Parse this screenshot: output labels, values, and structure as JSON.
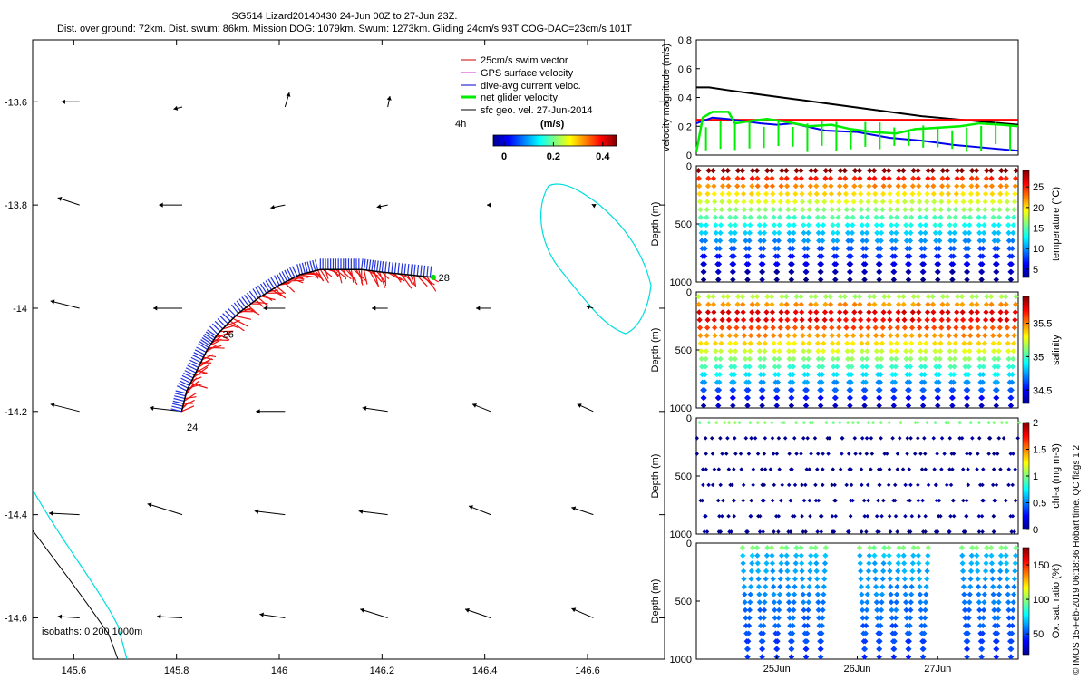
{
  "header": {
    "title_line1": "SG514 Lizard20140430 24-Jun 00Z to 27-Jun 23Z.",
    "title_line2": "Dist. over ground: 72km. Dist. swum: 86km. Mission DOG: 1079km. Swum: 1273km. Gliding 24cm/s 93T COG-DAC=23cm/s 101T"
  },
  "credit": "© IMOS 15-Feb-2019 06:18:36 Hobart time. QC flags 1  2",
  "chart_data": [
    {
      "type": "scatter",
      "id": "map",
      "xlim": [
        145.52,
        146.75
      ],
      "ylim": [
        -14.68,
        -13.48
      ],
      "x_ticks": [
        145.6,
        145.8,
        146,
        146.2,
        146.4,
        146.6
      ],
      "x_tick_labels": [
        "145.6",
        "145.8",
        "146",
        "146.2",
        "146.4",
        "146.6"
      ],
      "y_ticks": [
        -13.6,
        -13.8,
        -14,
        -14.2,
        -14.4,
        -14.6
      ],
      "y_tick_labels": [
        "-13.6",
        "-13.8",
        "-14",
        "-14.2",
        "-14.4",
        "-14.6"
      ],
      "legend": {
        "placement": "top-right",
        "items": [
          {
            "label": "25cm/s swim vector",
            "color": "#cc0000"
          },
          {
            "label": "GPS surface velocity",
            "color": "#cc33cc"
          },
          {
            "label": "dive-avg current veloc.",
            "color": "#0000cc"
          },
          {
            "label": "net glider velocity",
            "color": "#00ee00"
          },
          {
            "label": "sfc geo. vel. 27-Jun-2014",
            "color": "#000000"
          }
        ],
        "time_label": "4h"
      },
      "colorbar": {
        "label": "(m/s)",
        "ticks": [
          0,
          0.2,
          0.4
        ],
        "tick_labels": [
          "0",
          "0.2",
          "0.4"
        ]
      },
      "isobath_label": "isobaths: 0   200  1000m",
      "track": {
        "lon": [
          145.81,
          145.82,
          145.84,
          145.86,
          145.88,
          145.92,
          145.96,
          146.0,
          146.04,
          146.08,
          146.12,
          146.16,
          146.2,
          146.25,
          146.3
        ],
        "lat": [
          -14.2,
          -14.16,
          -14.12,
          -14.08,
          -14.05,
          -14.01,
          -13.98,
          -13.955,
          -13.935,
          -13.925,
          -13.925,
          -13.925,
          -13.93,
          -13.935,
          -13.94
        ]
      },
      "day_labels": [
        {
          "label": "24",
          "lon": 145.82,
          "lat": -14.23
        },
        {
          "label": "26",
          "lon": 145.89,
          "lat": -14.05
        },
        {
          "label": "28",
          "lon": 146.31,
          "lat": -13.94
        }
      ],
      "geo_vectors": [
        {
          "lon": 145.59,
          "lat": -13.6,
          "u": -0.25,
          "v": 0.0
        },
        {
          "lon": 145.79,
          "lat": -13.61,
          "u": -0.12,
          "v": -0.03
        },
        {
          "lon": 145.99,
          "lat": -13.61,
          "u": 0.06,
          "v": 0.2
        },
        {
          "lon": 146.19,
          "lat": -13.61,
          "u": 0.03,
          "v": 0.15
        },
        {
          "lon": 145.59,
          "lat": -13.8,
          "u": -0.3,
          "v": 0.1
        },
        {
          "lon": 145.79,
          "lat": -13.8,
          "u": -0.32,
          "v": 0.0
        },
        {
          "lon": 145.99,
          "lat": -13.8,
          "u": -0.2,
          "v": -0.04
        },
        {
          "lon": 146.19,
          "lat": -13.8,
          "u": -0.15,
          "v": -0.03
        },
        {
          "lon": 146.39,
          "lat": -13.8,
          "u": -0.05,
          "v": 0.0
        },
        {
          "lon": 146.59,
          "lat": -13.8,
          "u": -0.02,
          "v": 0.01
        },
        {
          "lon": 145.59,
          "lat": -14.0,
          "u": -0.4,
          "v": 0.1
        },
        {
          "lon": 145.79,
          "lat": -14.0,
          "u": -0.4,
          "v": 0.0
        },
        {
          "lon": 145.99,
          "lat": -14.0,
          "u": -0.3,
          "v": 0.0
        },
        {
          "lon": 146.19,
          "lat": -14.0,
          "u": -0.22,
          "v": 0.0
        },
        {
          "lon": 146.39,
          "lat": -14.0,
          "u": -0.2,
          "v": 0.0
        },
        {
          "lon": 146.59,
          "lat": -14.0,
          "u": -0.1,
          "v": 0.03
        },
        {
          "lon": 145.59,
          "lat": -14.2,
          "u": -0.4,
          "v": 0.1
        },
        {
          "lon": 145.79,
          "lat": -14.2,
          "u": -0.45,
          "v": 0.05
        },
        {
          "lon": 145.99,
          "lat": -14.2,
          "u": -0.4,
          "v": 0.0
        },
        {
          "lon": 146.19,
          "lat": -14.2,
          "u": -0.35,
          "v": 0.05
        },
        {
          "lon": 146.39,
          "lat": -14.2,
          "u": -0.25,
          "v": 0.1
        },
        {
          "lon": 146.59,
          "lat": -14.2,
          "u": -0.22,
          "v": 0.1
        },
        {
          "lon": 145.59,
          "lat": -14.4,
          "u": -0.42,
          "v": 0.02
        },
        {
          "lon": 145.79,
          "lat": -14.4,
          "u": -0.48,
          "v": 0.15
        },
        {
          "lon": 145.99,
          "lat": -14.4,
          "u": -0.42,
          "v": 0.05
        },
        {
          "lon": 146.19,
          "lat": -14.4,
          "u": -0.4,
          "v": 0.05
        },
        {
          "lon": 146.39,
          "lat": -14.4,
          "u": -0.3,
          "v": 0.12
        },
        {
          "lon": 146.59,
          "lat": -14.4,
          "u": -0.3,
          "v": 0.1
        },
        {
          "lon": 145.59,
          "lat": -14.6,
          "u": -0.3,
          "v": 0.02
        },
        {
          "lon": 145.79,
          "lat": -14.6,
          "u": -0.35,
          "v": 0.02
        },
        {
          "lon": 145.99,
          "lat": -14.6,
          "u": -0.35,
          "v": 0.05
        },
        {
          "lon": 146.19,
          "lat": -14.6,
          "u": -0.38,
          "v": 0.12
        },
        {
          "lon": 146.39,
          "lat": -14.6,
          "u": -0.35,
          "v": 0.12
        },
        {
          "lon": 146.59,
          "lat": -14.6,
          "u": -0.3,
          "v": 0.13
        }
      ]
    },
    {
      "type": "line",
      "id": "velocity",
      "ylabel": "velocity magnitude (m/s)",
      "xlim": [
        0,
        100
      ],
      "ylim": [
        0,
        0.8
      ],
      "y_ticks": [
        0,
        0.2,
        0.4,
        0.6,
        0.8
      ],
      "y_tick_labels": [
        "0",
        "0.2",
        "0.4",
        "0.6",
        "0.8"
      ],
      "series": [
        {
          "color": "#000000",
          "x": [
            0,
            4,
            10,
            20,
            30,
            40,
            50,
            60,
            70,
            80,
            90,
            100
          ],
          "values": [
            0.47,
            0.47,
            0.45,
            0.42,
            0.39,
            0.36,
            0.33,
            0.3,
            0.27,
            0.25,
            0.23,
            0.21
          ]
        },
        {
          "color": "#ff0000",
          "x": [
            0,
            100
          ],
          "values": [
            0.245,
            0.245
          ]
        },
        {
          "color": "#0000ee",
          "x": [
            0,
            5,
            10,
            20,
            25,
            30,
            40,
            50,
            60,
            70,
            80,
            90,
            100
          ],
          "values": [
            0.22,
            0.26,
            0.25,
            0.22,
            0.21,
            0.22,
            0.17,
            0.16,
            0.12,
            0.1,
            0.07,
            0.05,
            0.03
          ]
        },
        {
          "color": "#00ee00",
          "x": [
            0,
            2,
            5,
            10,
            12,
            18,
            22,
            28,
            35,
            42,
            48,
            55,
            62,
            68,
            75,
            82,
            88,
            95,
            100
          ],
          "values": [
            0.02,
            0.26,
            0.3,
            0.3,
            0.22,
            0.24,
            0.25,
            0.23,
            0.2,
            0.21,
            0.18,
            0.16,
            0.15,
            0.18,
            0.19,
            0.2,
            0.22,
            0.21,
            0.2
          ]
        }
      ]
    },
    {
      "type": "scatter",
      "id": "temperature",
      "ylabel": "Depth (m)",
      "ylim": [
        1000,
        0
      ],
      "y_ticks": [
        0,
        500,
        1000
      ],
      "y_tick_labels": [
        "0",
        "500",
        "1000"
      ],
      "cmin": 3,
      "cmax": 29,
      "colorbar_label": "temperature (°C)",
      "colorbar_ticks": [
        5,
        10,
        15,
        20,
        25
      ],
      "colorbar_tick_labels": [
        "5",
        "10",
        "15",
        "20",
        "25"
      ],
      "profiles": 22,
      "gaps": [],
      "sparse": false
    },
    {
      "type": "scatter",
      "id": "salinity",
      "ylabel": "Depth (m)",
      "ylim": [
        1000,
        0
      ],
      "y_ticks": [
        0,
        500,
        1000
      ],
      "y_tick_labels": [
        "0",
        "500",
        "1000"
      ],
      "cmin": 34.3,
      "cmax": 35.9,
      "colorbar_label": "salinity",
      "colorbar_ticks": [
        34.5,
        35,
        35.5
      ],
      "colorbar_tick_labels": [
        "34.5",
        "35",
        "35.5"
      ],
      "profiles": 22,
      "gaps": [],
      "sparse": false
    },
    {
      "type": "scatter",
      "id": "chl",
      "ylabel": "Depth (m)",
      "ylim": [
        1000,
        0
      ],
      "y_ticks": [
        0,
        500,
        1000
      ],
      "y_tick_labels": [
        "0",
        "500",
        "1000"
      ],
      "cmin": 0,
      "cmax": 2,
      "colorbar_label": "chl-a (mg m-3)",
      "colorbar_ticks": [
        0,
        0.5,
        1,
        1.5,
        2
      ],
      "colorbar_tick_labels": [
        "0",
        "0.5",
        "1",
        "1.5",
        "2"
      ],
      "profiles": 22,
      "gaps": [],
      "sparse": true
    },
    {
      "type": "scatter",
      "id": "oxygen",
      "ylabel": "Depth (m)",
      "ylim": [
        1000,
        0
      ],
      "y_ticks": [
        0,
        500,
        1000
      ],
      "y_tick_labels": [
        "0",
        "500",
        "1000"
      ],
      "cmin": 20,
      "cmax": 175,
      "colorbar_label": "Ox. sat. ratio (%)",
      "colorbar_ticks": [
        50,
        100,
        150
      ],
      "colorbar_tick_labels": [
        "50",
        "100",
        "150"
      ],
      "profiles": 22,
      "gaps": [
        [
          0,
          3
        ],
        [
          9,
          11
        ],
        [
          16,
          18
        ]
      ],
      "sparse": false,
      "x_ticks": [
        25,
        50,
        75
      ],
      "x_tick_labels": [
        "25Jun",
        "26Jun",
        "27Jun"
      ]
    }
  ]
}
